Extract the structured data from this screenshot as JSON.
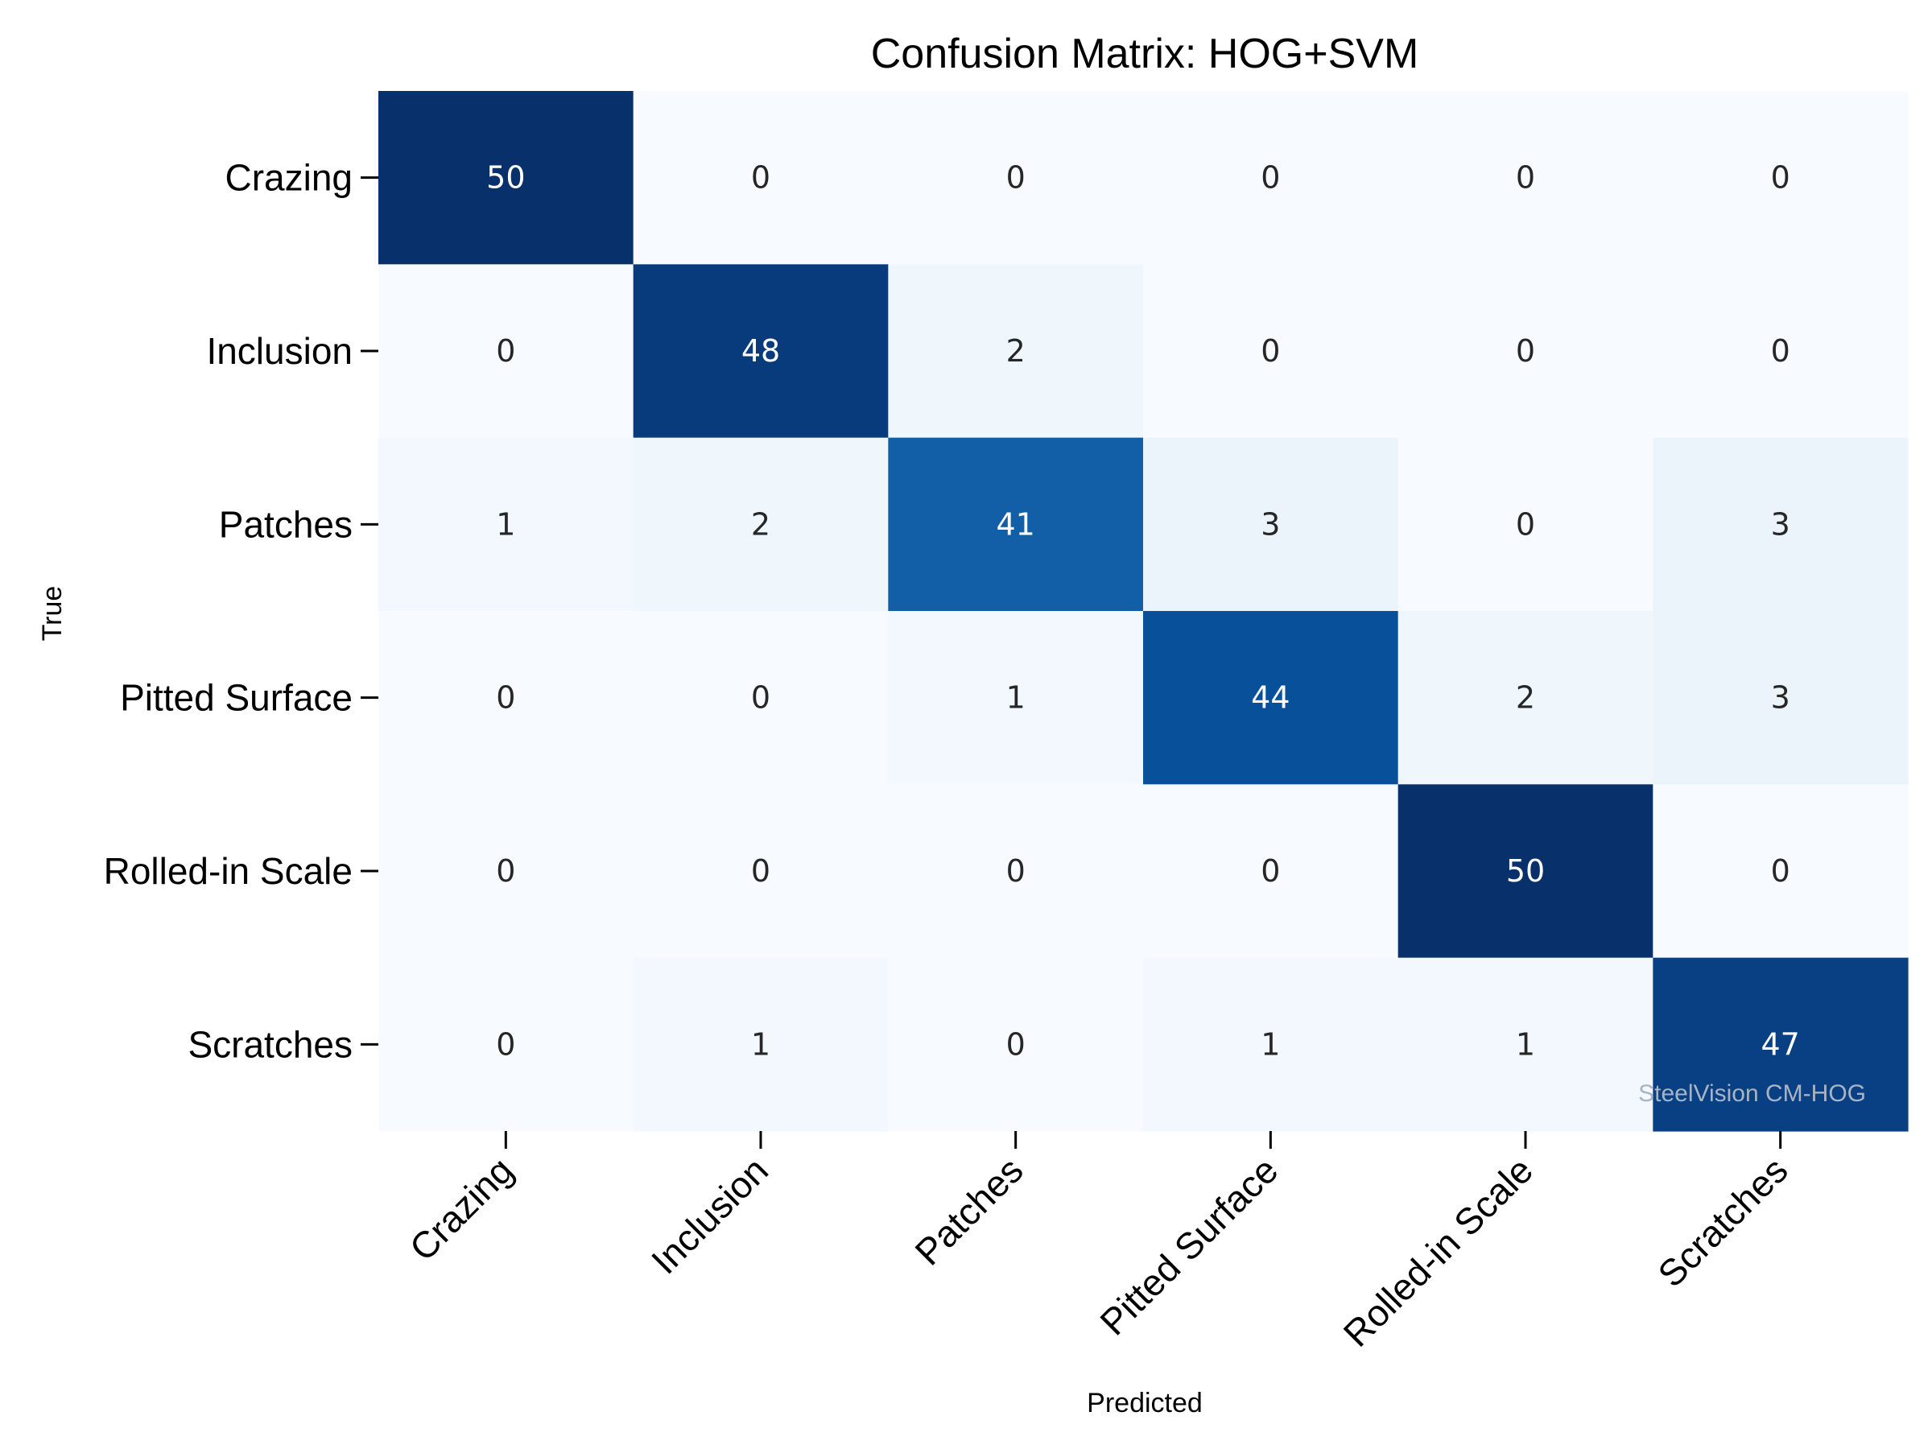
{
  "chart_data": {
    "type": "heatmap",
    "title": "Confusion Matrix: HOG+SVM",
    "xlabel": "Predicted",
    "ylabel": "True",
    "x_categories": [
      "Crazing",
      "Inclusion",
      "Patches",
      "Pitted Surface",
      "Rolled-in Scale",
      "Scratches"
    ],
    "y_categories": [
      "Crazing",
      "Inclusion",
      "Patches",
      "Pitted Surface",
      "Rolled-in Scale",
      "Scratches"
    ],
    "values": [
      [
        50,
        0,
        0,
        0,
        0,
        0
      ],
      [
        0,
        48,
        2,
        0,
        0,
        0
      ],
      [
        1,
        2,
        41,
        3,
        0,
        3
      ],
      [
        0,
        0,
        1,
        44,
        2,
        3
      ],
      [
        0,
        0,
        0,
        0,
        50,
        0
      ],
      [
        0,
        1,
        0,
        1,
        1,
        47
      ]
    ],
    "colormap": "Blues",
    "color_low": "#f7fbff",
    "color_high": "#08306b",
    "vmin": 0,
    "vmax": 50,
    "grid": false,
    "legend": "none"
  },
  "watermark": "SteelVision CM-HOG"
}
